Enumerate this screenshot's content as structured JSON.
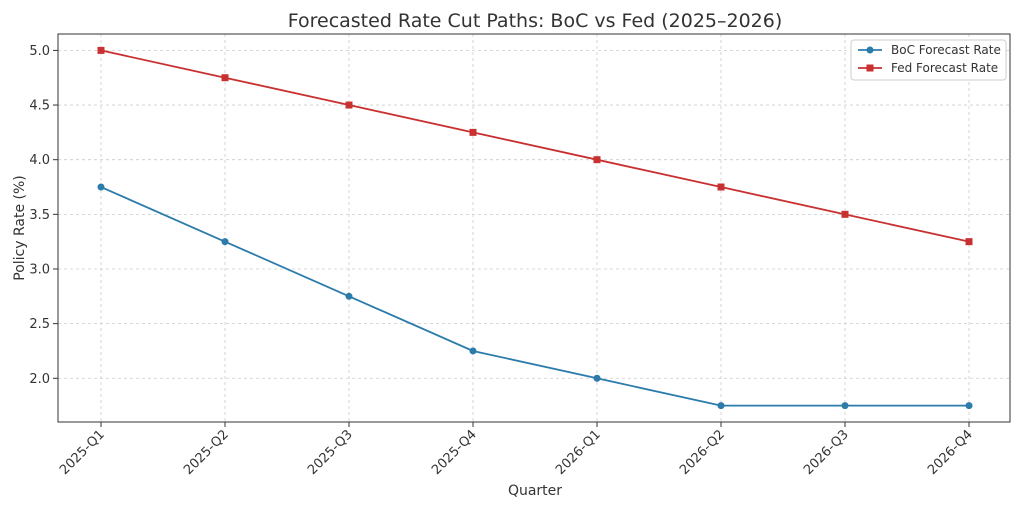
{
  "chart_data": {
    "type": "line",
    "title": "Forecasted Rate Cut Paths: BoC vs Fed (2025–2026)",
    "xlabel": "Quarter",
    "ylabel": "Policy Rate (%)",
    "categories": [
      "2025-Q1",
      "2025-Q2",
      "2025-Q3",
      "2025-Q4",
      "2026-Q1",
      "2026-Q2",
      "2026-Q3",
      "2026-Q4"
    ],
    "ylim": [
      1.6,
      5.15
    ],
    "yticks": [
      "2.0",
      "2.5",
      "3.0",
      "3.5",
      "4.0",
      "4.5",
      "5.0"
    ],
    "grid": true,
    "legend_position": "top-right",
    "series": [
      {
        "name": "BoC Forecast Rate",
        "color": "#2b7bab",
        "marker": "circle",
        "values": [
          3.75,
          3.25,
          2.75,
          2.25,
          2.0,
          1.75,
          1.75,
          1.75
        ]
      },
      {
        "name": "Fed Forecast Rate",
        "color": "#c93030",
        "marker": "square",
        "values": [
          5.0,
          4.75,
          4.5,
          4.25,
          4.0,
          3.75,
          3.5,
          3.25
        ]
      }
    ]
  }
}
